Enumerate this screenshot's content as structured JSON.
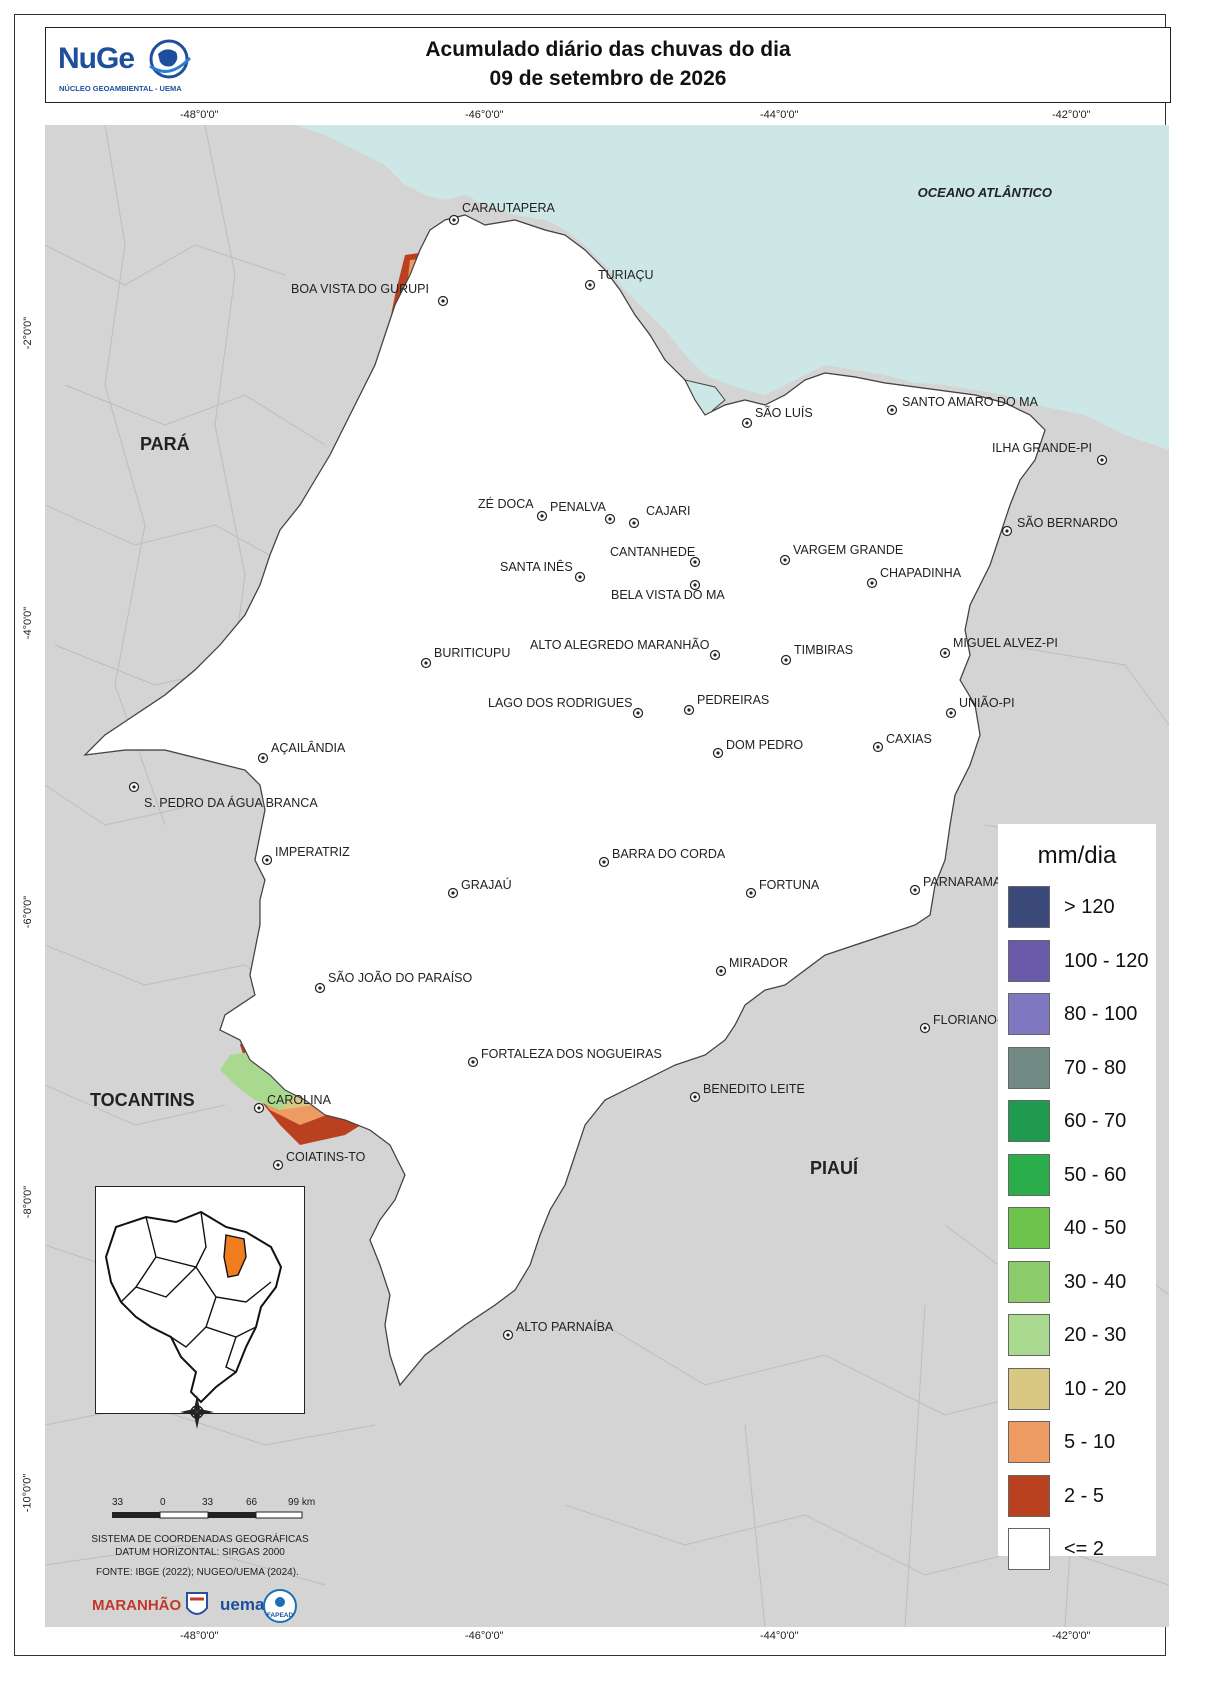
{
  "header": {
    "logo_text": "NuGe",
    "logo_subtitle": "NÚCLEO GEOAMBIENTAL - UEMA",
    "title_line1": "Acumulado diário das chuvas do dia",
    "title_line2": "09 de setembro de 2026"
  },
  "graticule": {
    "longitudes": [
      "-48°0'0\"",
      "-46°0'0\"",
      "-44°0'0\"",
      "-42°0'0\""
    ],
    "latitudes": [
      "-2°0'0\"",
      "-4°0'0\"",
      "-6°0'0\"",
      "-8°0'0\"",
      "-10°0'0\""
    ]
  },
  "regions": {
    "ocean": "OCEANO ATLÂNTICO",
    "para": "PARÁ",
    "tocantins": "TOCANTINS",
    "piaui": "PIAUÍ"
  },
  "cities": [
    "CARAUTAPERA",
    "TURIAÇU",
    "BOA VISTA DO GURUPI",
    "SÃO LUÍS",
    "SANTO AMARO DO MA",
    "ILHA GRANDE-PI",
    "ZÉ DOCA",
    "PENALVA",
    "CAJARI",
    "SÃO BERNARDO",
    "CANTANHEDE",
    "VARGEM GRANDE",
    "SANTA INÊS",
    "BELA VISTA DO MA",
    "CHAPADINHA",
    "ALTO ALEGREDO MARANHÃO",
    "MIGUEL ALVEZ-PI",
    "BURITICUPU",
    "TIMBIRAS",
    "LAGO DOS RODRIGUES",
    "PEDREIRAS",
    "UNIÃO-PI",
    "AÇAILÂNDIA",
    "CAXIAS",
    "DOM PEDRO",
    "S. PEDRO DA ÁGUA BRANCA",
    "IMPERATRIZ",
    "BARRA DO CORDA",
    "PARNARAMA",
    "FORTUNA",
    "GRAJAÚ",
    "MIRADOR",
    "SÃO JOÃO DO PARAÍSO",
    "FLORIANO-",
    "FORTALEZA DOS NOGUEIRAS",
    "BENEDITO LEITE",
    "CAROLINA",
    "COIATINS-TO",
    "ALTO PARNAÍBA"
  ],
  "legend": {
    "title": "mm/dia",
    "classes": [
      {
        "label": "> 120",
        "color": "#3b4a7a"
      },
      {
        "label": "100 - 120",
        "color": "#6a5aaa"
      },
      {
        "label": "80 - 100",
        "color": "#7f78c0"
      },
      {
        "label": "70 - 80",
        "color": "#728a84"
      },
      {
        "label": "60 - 70",
        "color": "#1f9a4f"
      },
      {
        "label": "50 - 60",
        "color": "#2aad4a"
      },
      {
        "label": "40 - 50",
        "color": "#6cc24a"
      },
      {
        "label": "30 - 40",
        "color": "#8ccb6a"
      },
      {
        "label": "20 - 30",
        "color": "#a9d98e"
      },
      {
        "label": "10 - 20",
        "color": "#d8c882"
      },
      {
        "label": "5 - 10",
        "color": "#ee9a63"
      },
      {
        "label": "2 - 5",
        "color": "#b9411f"
      },
      {
        "label": "<= 2",
        "color": "#ffffff"
      }
    ]
  },
  "scale": {
    "labels": [
      "33",
      "0",
      "33",
      "66",
      "99 km"
    ]
  },
  "crs": {
    "line1": "SISTEMA DE COORDENADAS GEOGRÁFICAS",
    "line2": "DATUM HORIZONTAL: SIRGAS 2000"
  },
  "source": "FONTE: IBGE (2022); NUGEO/UEMA (2024).",
  "partner_logos": [
    "MARANHÃO",
    "uema",
    "FAPEAD"
  ],
  "colors": {
    "ocean": "#cde6e6",
    "neighbor": "#d4d4d4",
    "state": "#ffffff",
    "highlight": "#f07d1e"
  }
}
